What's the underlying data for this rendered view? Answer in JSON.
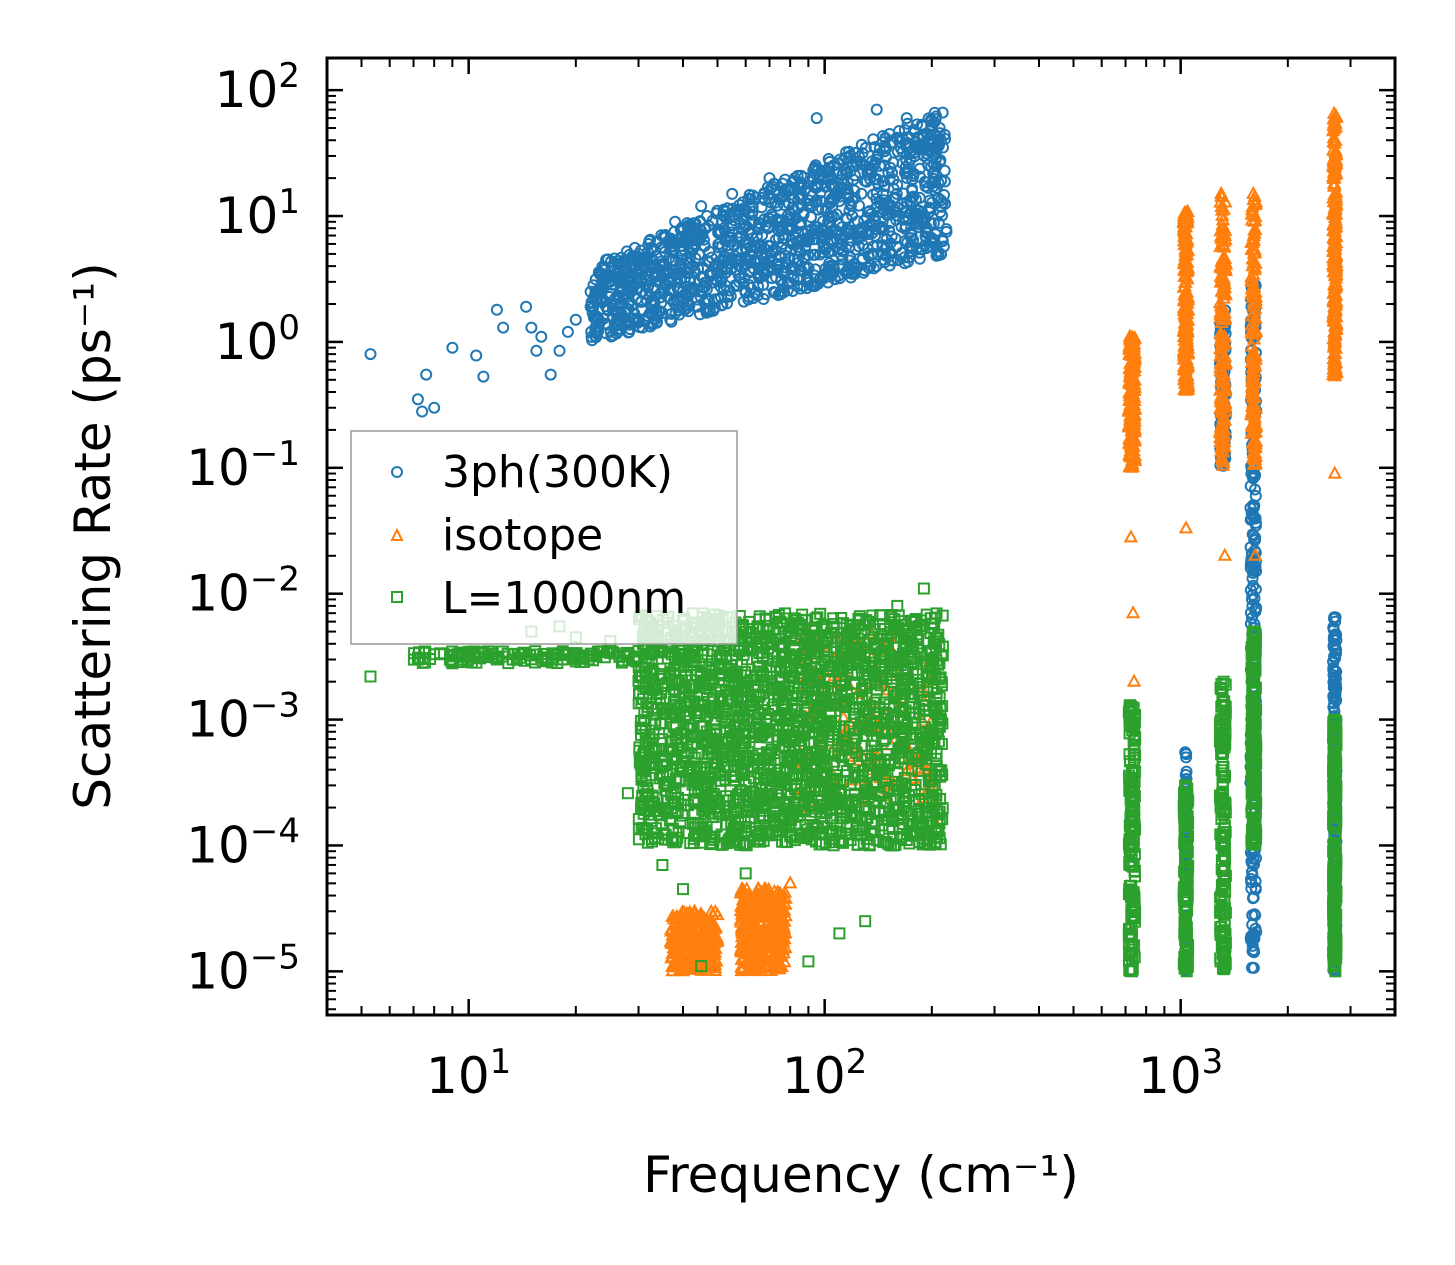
{
  "chart_data": {
    "type": "scatter",
    "xscale": "log",
    "yscale": "log",
    "xlim": [
      4,
      4000
    ],
    "ylim": [
      4.5e-06,
      180
    ],
    "xlabel": "Frequency (cm⁻¹)",
    "ylabel": "Scattering Rate (ps⁻¹)",
    "legend_position": "center-left",
    "x_ticks": [
      {
        "base": "10",
        "exp": "1",
        "value": 10
      },
      {
        "base": "10",
        "exp": "2",
        "value": 100
      },
      {
        "base": "10",
        "exp": "3",
        "value": 1000
      }
    ],
    "y_ticks": [
      {
        "base": "10",
        "exp": "2",
        "value": 100
      },
      {
        "base": "10",
        "exp": "1",
        "value": 10
      },
      {
        "base": "10",
        "exp": "0",
        "value": 1
      },
      {
        "base": "10",
        "exp": "−1",
        "value": 0.1
      },
      {
        "base": "10",
        "exp": "−2",
        "value": 0.01
      },
      {
        "base": "10",
        "exp": "−3",
        "value": 0.001
      },
      {
        "base": "10",
        "exp": "−4",
        "value": 0.0001
      },
      {
        "base": "10",
        "exp": "−5",
        "value": 1e-05
      }
    ],
    "series": [
      {
        "name": "3ph(300K)",
        "marker": "circle",
        "color": "#1f77b4",
        "points": [
          [
            5.3,
            0.8
          ],
          [
            7.2,
            0.35
          ],
          [
            7.4,
            0.28
          ],
          [
            7.6,
            0.55
          ],
          [
            8,
            0.3
          ],
          [
            9,
            0.9
          ],
          [
            10.5,
            0.78
          ],
          [
            11,
            0.53
          ],
          [
            12,
            1.8
          ],
          [
            12.5,
            1.3
          ],
          [
            14.5,
            1.9
          ],
          [
            15,
            1.3
          ],
          [
            15.5,
            0.85
          ],
          [
            16,
            1.1
          ],
          [
            17,
            0.55
          ],
          [
            18,
            0.85
          ],
          [
            19,
            1.2
          ],
          [
            20,
            1.5
          ],
          [
            22,
            2.5
          ],
          [
            25,
            3.0
          ],
          [
            28,
            4.5
          ],
          [
            32,
            6.0
          ],
          [
            38,
            9.0
          ],
          [
            45,
            12.0
          ],
          [
            55,
            15.0
          ],
          [
            70,
            20.0
          ],
          [
            85,
            5.3
          ],
          [
            95,
            60.0
          ],
          [
            120,
            25.0
          ],
          [
            140,
            70.0
          ],
          [
            170,
            60.0
          ],
          [
            200,
            50.0
          ],
          [
            215,
            35.0
          ],
          [
            1030,
            0.00055
          ],
          [
            1040,
            0.0003
          ],
          [
            1035,
            2e-05
          ],
          [
            1300,
            1.8
          ],
          [
            1320,
            0.2
          ],
          [
            1310,
            0.6
          ],
          [
            1580,
            3.0
          ],
          [
            1600,
            0.5
          ],
          [
            1610,
            0.05
          ],
          [
            1590,
            0.008
          ],
          [
            1620,
            0.0015
          ],
          [
            2700,
            0.0065
          ],
          [
            2720,
            0.001
          ],
          [
            2710,
            1e-05
          ]
        ],
        "bands": [
          {
            "x": [
              22,
              220
            ],
            "y_lo": [
              1.0,
              5.0
            ],
            "y_hi": [
              4.0,
              75.0
            ],
            "n": 1400
          },
          {
            "x": [
              1030,
              1040
            ],
            "y_lo": [
              1e-05
            ],
            "y_hi": [
              0.00055
            ],
            "n": 60
          },
          {
            "x": [
              1290,
              1340
            ],
            "y_lo": [
              0.1
            ],
            "y_hi": [
              1.8
            ],
            "n": 120
          },
          {
            "x": [
              1570,
              1630
            ],
            "y_lo": [
              1e-05
            ],
            "y_hi": [
              3.0
            ],
            "n": 260
          },
          {
            "x": [
              2680,
              2740
            ],
            "y_lo": [
              1e-05
            ],
            "y_hi": [
              0.0065
            ],
            "n": 220
          }
        ]
      },
      {
        "name": "isotope",
        "marker": "triangle",
        "color": "#ff7f0e",
        "points": [
          [
            40,
            1e-05
          ],
          [
            45,
            2.8e-05
          ],
          [
            65,
            4.5e-05
          ],
          [
            80,
            5e-05
          ],
          [
            90,
            0.003
          ],
          [
            100,
            0.0013
          ],
          [
            135,
            0.0048
          ],
          [
            150,
            0.004
          ],
          [
            170,
            0.0006
          ],
          [
            190,
            0.0004
          ],
          [
            205,
            0.00015
          ],
          [
            720,
            1.1
          ],
          [
            730,
            0.1
          ],
          [
            725,
            0.028
          ],
          [
            735,
            0.007
          ],
          [
            740,
            0.002
          ],
          [
            1030,
            10.0
          ],
          [
            1040,
            0.5
          ],
          [
            1035,
            0.033
          ],
          [
            1300,
            15.0
          ],
          [
            1320,
            0.3
          ],
          [
            1330,
            0.02
          ],
          [
            1600,
            15.0
          ],
          [
            1610,
            0.3
          ],
          [
            1620,
            0.02
          ],
          [
            2700,
            60.0
          ],
          [
            2720,
            0.8
          ],
          [
            2710,
            0.09
          ]
        ],
        "bands": [
          {
            "x": [
              37,
              50
            ],
            "y_lo": [
              1e-05
            ],
            "y_hi": [
              3e-05
            ],
            "n": 260
          },
          {
            "x": [
              58,
              78
            ],
            "y_lo": [
              1e-05
            ],
            "y_hi": [
              4.5e-05
            ],
            "n": 320
          },
          {
            "x": [
              85,
              200
            ],
            "y_lo": [
              0.0002
            ],
            "y_hi": [
              0.005
            ],
            "n": 180
          },
          {
            "x": [
              715,
              745
            ],
            "y_lo": [
              0.1
            ],
            "y_hi": [
              1.1
            ],
            "n": 160
          },
          {
            "x": [
              1020,
              1050
            ],
            "y_lo": [
              0.4
            ],
            "y_hi": [
              11.0
            ],
            "n": 200
          },
          {
            "x": [
              1290,
              1340
            ],
            "y_lo": [
              0.1
            ],
            "y_hi": [
              15.0
            ],
            "n": 160
          },
          {
            "x": [
              1580,
              1630
            ],
            "y_lo": [
              0.1
            ],
            "y_hi": [
              15.0
            ],
            "n": 160
          },
          {
            "x": [
              2680,
              2740
            ],
            "y_lo": [
              0.5
            ],
            "y_hi": [
              65.0
            ],
            "n": 220
          }
        ]
      },
      {
        "name": "L=1000nm",
        "marker": "square",
        "color": "#2ca02c",
        "points": [
          [
            5.3,
            0.0022
          ],
          [
            7.2,
            0.003
          ],
          [
            9,
            0.0028
          ],
          [
            12,
            0.003
          ],
          [
            15,
            0.005
          ],
          [
            18,
            0.0055
          ],
          [
            20,
            0.0045
          ],
          [
            25,
            0.0042
          ],
          [
            30,
            0.0035
          ],
          [
            35,
            0.0007
          ],
          [
            28,
            0.00026
          ],
          [
            32,
            0.00025
          ],
          [
            35,
            7e-05
          ],
          [
            40,
            4.5e-05
          ],
          [
            45,
            1.1e-05
          ],
          [
            60,
            6e-05
          ],
          [
            90,
            1.2e-05
          ],
          [
            110,
            2e-05
          ],
          [
            130,
            2.5e-05
          ],
          [
            160,
            0.008
          ],
          [
            190,
            0.011
          ],
          [
            210,
            0.0028
          ],
          [
            210,
            0.00015
          ],
          [
            720,
            0.0013
          ],
          [
            725,
            0.0001
          ],
          [
            730,
            1e-05
          ],
          [
            1030,
            0.0003
          ],
          [
            1040,
            1e-05
          ],
          [
            1320,
            0.002
          ],
          [
            1310,
            0.0001
          ],
          [
            1330,
            1.1e-05
          ],
          [
            1600,
            0.005
          ],
          [
            1610,
            0.0006
          ],
          [
            1620,
            0.00016
          ],
          [
            2700,
            0.001
          ],
          [
            2720,
            1e-05
          ]
        ],
        "bands": [
          {
            "x": [
              7,
              30
            ],
            "y_lo": [
              0.0028
            ],
            "y_hi": [
              0.0035
            ],
            "n": 140
          },
          {
            "x": [
              30,
              215
            ],
            "y_lo": [
              0.0001
            ],
            "y_hi": [
              0.007
            ],
            "n": 2200
          },
          {
            "x": [
              715,
              745
            ],
            "y_lo": [
              1e-05
            ],
            "y_hi": [
              0.0013
            ],
            "n": 160
          },
          {
            "x": [
              1020,
              1050
            ],
            "y_lo": [
              1e-05
            ],
            "y_hi": [
              0.0003
            ],
            "n": 120
          },
          {
            "x": [
              1290,
              1340
            ],
            "y_lo": [
              1e-05
            ],
            "y_hi": [
              0.002
            ],
            "n": 160
          },
          {
            "x": [
              1580,
              1630
            ],
            "y_lo": [
              0.0001
            ],
            "y_hi": [
              0.005
            ],
            "n": 200
          },
          {
            "x": [
              2680,
              2740
            ],
            "y_lo": [
              1e-05
            ],
            "y_hi": [
              0.001
            ],
            "n": 220
          }
        ]
      }
    ]
  }
}
